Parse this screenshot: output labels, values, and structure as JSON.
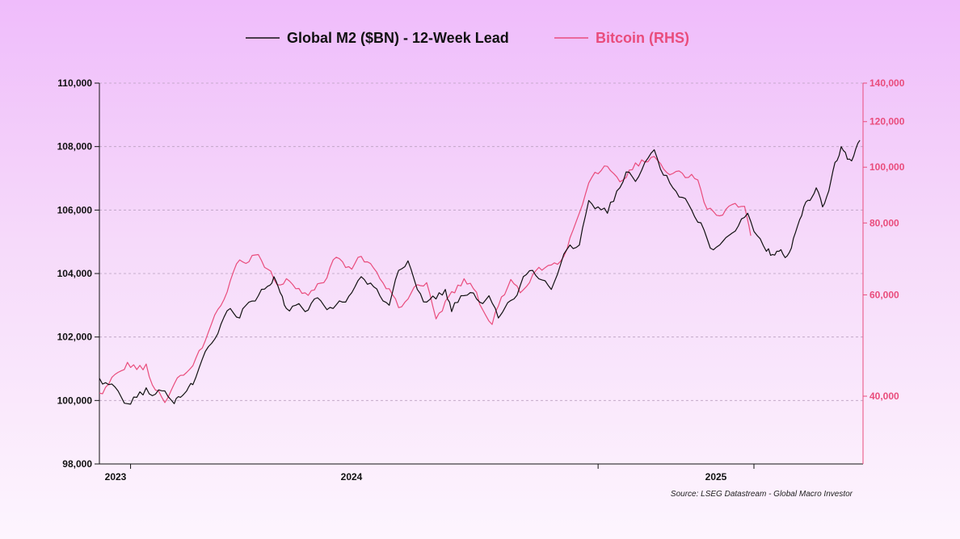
{
  "chart_data": {
    "type": "line",
    "legend_position": "top-center",
    "grid": true,
    "grid_style": "dashed-horizontal",
    "source": "Source: LSEG Datastream - Global Macro Investor",
    "x_axis": {
      "ticks": [
        {
          "label": "2023",
          "year": 2023.0
        },
        {
          "label": "2024",
          "year": 2024.0
        },
        {
          "label": "2025",
          "year": 2025.0
        }
      ],
      "range": [
        2022.9,
        2025.35
      ]
    },
    "y_left": {
      "range": [
        98000,
        110000
      ],
      "ticks": [
        98000,
        100000,
        102000,
        104000,
        106000,
        108000,
        110000
      ],
      "tick_labels": [
        "98,000",
        "100,000",
        "102,000",
        "104,000",
        "106,000",
        "108,000",
        "110,000"
      ]
    },
    "y_right": {
      "scale": "log",
      "range": [
        30500,
        140000
      ],
      "ticks": [
        40000,
        60000,
        80000,
        100000,
        120000,
        140000
      ],
      "tick_labels": [
        "40,000",
        "60,000",
        "80,000",
        "100,000",
        "120,000",
        "140,000"
      ]
    },
    "series": [
      {
        "name": "Global M2 ($BN) - 12-Week Lead",
        "axis": "left",
        "color": "#111111",
        "x": [
          2022.9,
          2022.93,
          2022.96,
          2022.99,
          2023.02,
          2023.05,
          2023.08,
          2023.11,
          2023.14,
          2023.16,
          2023.18,
          2023.2,
          2023.23,
          2023.26,
          2023.29,
          2023.32,
          2023.35,
          2023.38,
          2023.41,
          2023.44,
          2023.46,
          2023.48,
          2023.5,
          2023.53,
          2023.56,
          2023.59,
          2023.62,
          2023.65,
          2023.68,
          2023.71,
          2023.74,
          2023.77,
          2023.8,
          2023.83,
          2023.86,
          2023.89,
          2023.92,
          2023.95,
          2023.98,
          2024.01,
          2024.03,
          2024.06,
          2024.09,
          2024.12,
          2024.15,
          2024.18,
          2024.2,
          2024.23,
          2024.26,
          2024.29,
          2024.32,
          2024.35,
          2024.38,
          2024.41,
          2024.44,
          2024.47,
          2024.5,
          2024.53,
          2024.56,
          2024.59,
          2024.62,
          2024.65,
          2024.68,
          2024.71,
          2024.74,
          2024.77,
          2024.8,
          2024.83,
          2024.86,
          2024.89,
          2024.92,
          2024.95,
          2024.98,
          2025.01,
          2025.04,
          2025.06,
          2025.08,
          2025.1,
          2025.12,
          2025.14,
          2025.16,
          2025.18,
          2025.2,
          2025.22,
          2025.24,
          2025.26,
          2025.28,
          2025.3,
          2025.32,
          2025.34
        ],
        "values": [
          100700,
          100500,
          100300,
          99900,
          100100,
          100400,
          100200,
          100300,
          99900,
          100100,
          100300,
          100500,
          101300,
          101800,
          102400,
          102900,
          102600,
          103100,
          103300,
          103600,
          103900,
          103400,
          102900,
          103000,
          102800,
          103200,
          103000,
          102900,
          103100,
          103400,
          103900,
          103700,
          103300,
          103000,
          104100,
          104400,
          103500,
          103100,
          103200,
          103500,
          102800,
          103300,
          103400,
          103100,
          103300,
          102600,
          102900,
          103200,
          103900,
          104100,
          103800,
          103500,
          104300,
          104900,
          104900,
          106300,
          106100,
          105900,
          106600,
          107200,
          106900,
          107500,
          107900,
          107100,
          106700,
          106400,
          106000,
          105600,
          104800,
          104900,
          105200,
          105500,
          105900,
          105200,
          104700,
          104600,
          104700,
          104500,
          104800,
          105500,
          106100,
          106300,
          106700,
          106100,
          106600,
          107500,
          108000,
          107600,
          107700,
          108200
        ]
      },
      {
        "name": "Bitcoin (RHS)",
        "axis": "right",
        "color": "#e94c7c",
        "x": [
          2022.9,
          2022.93,
          2022.96,
          2022.99,
          2023.02,
          2023.05,
          2023.08,
          2023.11,
          2023.14,
          2023.17,
          2023.2,
          2023.23,
          2023.26,
          2023.29,
          2023.32,
          2023.35,
          2023.38,
          2023.41,
          2023.44,
          2023.47,
          2023.5,
          2023.53,
          2023.56,
          2023.59,
          2023.62,
          2023.65,
          2023.68,
          2023.71,
          2023.74,
          2023.77,
          2023.8,
          2023.83,
          2023.86,
          2023.89,
          2023.92,
          2023.95,
          2023.98,
          2024.01,
          2024.04,
          2024.07,
          2024.1,
          2024.13,
          2024.16,
          2024.19,
          2024.22,
          2024.25,
          2024.28,
          2024.31,
          2024.34,
          2024.37,
          2024.4,
          2024.43,
          2024.46,
          2024.49,
          2024.52,
          2024.55,
          2024.58,
          2024.61,
          2024.64,
          2024.67,
          2024.7,
          2024.73,
          2024.76,
          2024.79,
          2024.82,
          2024.85,
          2024.88,
          2024.91,
          2024.94,
          2024.97,
          2024.99
        ],
        "values": [
          40500,
          42000,
          44000,
          45800,
          44500,
          45500,
          41000,
          39000,
          42000,
          43500,
          45200,
          48500,
          53500,
          57500,
          63500,
          69000,
          68500,
          70500,
          66500,
          62500,
          64000,
          61500,
          60500,
          61200,
          63000,
          69000,
          68500,
          66500,
          70000,
          68000,
          64000,
          61500,
          57000,
          59000,
          62500,
          63000,
          54500,
          58500,
          60500,
          64000,
          61500,
          56500,
          53300,
          59500,
          63800,
          60500,
          63000,
          67000,
          67500,
          67800,
          72000,
          80500,
          90000,
          98000,
          100500,
          97500,
          95000,
          99000,
          103000,
          104000,
          101500,
          97000,
          98500,
          96000,
          95000,
          84500,
          82500,
          84500,
          86500,
          85500,
          76000
        ]
      }
    ]
  }
}
